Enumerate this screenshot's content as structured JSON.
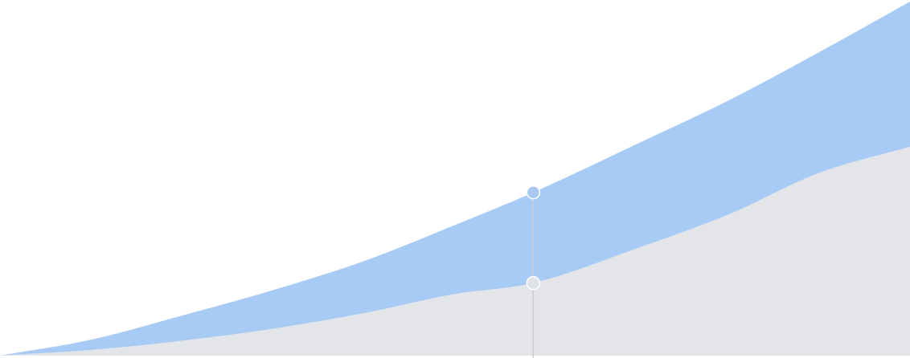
{
  "chart_data": {
    "type": "area",
    "stacked": true,
    "title": "",
    "xlabel": "",
    "ylabel": "",
    "grid": false,
    "legend": "none",
    "xlim": [
      0,
      100
    ],
    "ylim": [
      0,
      100
    ],
    "x": [
      0,
      10,
      20,
      30,
      40,
      50,
      58.6,
      70,
      80,
      90,
      100
    ],
    "series": [
      {
        "values": [
          0,
          1.6,
          4.2,
          7.6,
          12.0,
          17.4,
          20.5,
          30.3,
          39.8,
          51.6,
          59.0
        ],
        "color": "#e4e5e9",
        "marker_color": "#dfe2e8"
      },
      {
        "values": [
          0,
          2.9,
          7.1,
          10.9,
          14.7,
          19.5,
          25.6,
          29.5,
          32.2,
          34.1,
          41.0
        ],
        "color": "#a8cbf5",
        "marker_color": "#a8c8f0"
      }
    ],
    "hover": {
      "x": 58.6
    }
  }
}
